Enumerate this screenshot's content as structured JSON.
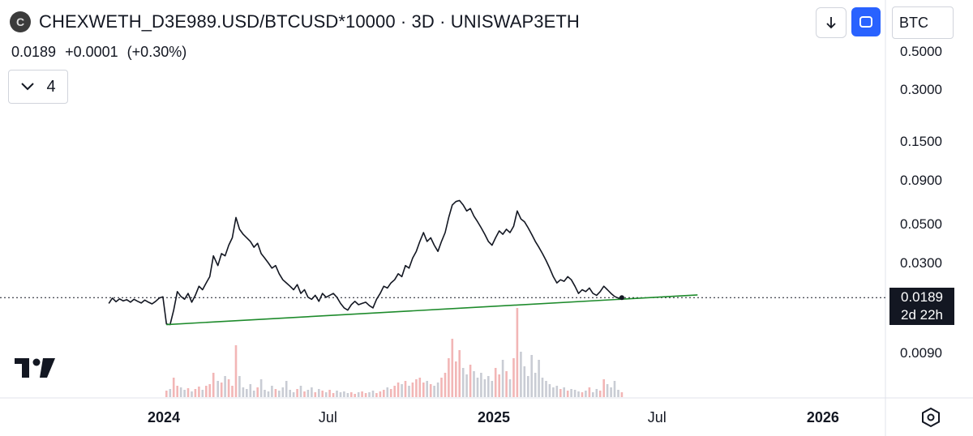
{
  "header": {
    "logo_letter": "C",
    "symbol_title": "CHEXWETH_D3E989.USD/BTCUSD*10000 · 3D · UNISWAP3ETH",
    "last_value": "0.0189",
    "change": "+0.0001",
    "change_pct": "(+0.30%)",
    "indicators_count": "4"
  },
  "toolbar": {
    "download_icon": "download-arrow-icon",
    "fullscreen_icon": "fullscreen-icon",
    "currency": "BTC"
  },
  "price_tag": {
    "value": "0.0189",
    "countdown": "2d 22h"
  },
  "colors": {
    "line": "#131722",
    "trendline": "#1e8b2c",
    "volume_up": "#f2b6b6",
    "volume_down": "#c9ccd4",
    "price_tag_bg": "#131722"
  },
  "chart_data": {
    "type": "line",
    "scale": "log",
    "y_ticks": [
      "0.5000",
      "0.3000",
      "0.1500",
      "0.0900",
      "0.0500",
      "0.0300",
      "0.0090"
    ],
    "y_tick_values": [
      0.5,
      0.3,
      0.15,
      0.09,
      0.05,
      0.03,
      0.009
    ],
    "x_ticks": [
      {
        "label": "2024",
        "date": "2024-01-01",
        "bold": true
      },
      {
        "label": "Jul",
        "date": "2024-07-01",
        "bold": false
      },
      {
        "label": "2025",
        "date": "2025-01-01",
        "bold": true
      },
      {
        "label": "Jul",
        "date": "2025-07-01",
        "bold": false
      },
      {
        "label": "2026",
        "date": "2026-01-01",
        "bold": true
      }
    ],
    "series": [
      {
        "points": [
          [
            "2023-11-01",
            0.0175
          ],
          [
            "2023-11-05",
            0.0188
          ],
          [
            "2023-11-09",
            0.0179
          ],
          [
            "2023-11-13",
            0.0186
          ],
          [
            "2023-11-17",
            0.0181
          ],
          [
            "2023-11-21",
            0.0184
          ],
          [
            "2023-11-25",
            0.0178
          ],
          [
            "2023-11-29",
            0.0185
          ],
          [
            "2023-12-03",
            0.018
          ],
          [
            "2023-12-07",
            0.0176
          ],
          [
            "2023-12-11",
            0.0183
          ],
          [
            "2023-12-15",
            0.0178
          ],
          [
            "2023-12-19",
            0.0174
          ],
          [
            "2023-12-23",
            0.018
          ],
          [
            "2023-12-27",
            0.0188
          ],
          [
            "2023-12-31",
            0.0191
          ],
          [
            "2024-01-04",
            0.0133
          ],
          [
            "2024-01-08",
            0.0132
          ],
          [
            "2024-01-12",
            0.016
          ],
          [
            "2024-01-16",
            0.0205
          ],
          [
            "2024-01-20",
            0.0192
          ],
          [
            "2024-01-24",
            0.0185
          ],
          [
            "2024-01-28",
            0.02
          ],
          [
            "2024-02-01",
            0.0178
          ],
          [
            "2024-02-05",
            0.0195
          ],
          [
            "2024-02-09",
            0.022
          ],
          [
            "2024-02-13",
            0.021
          ],
          [
            "2024-02-17",
            0.023
          ],
          [
            "2024-02-21",
            0.025
          ],
          [
            "2024-02-25",
            0.033
          ],
          [
            "2024-03-01",
            0.029
          ],
          [
            "2024-03-05",
            0.034
          ],
          [
            "2024-03-09",
            0.033
          ],
          [
            "2024-03-13",
            0.038
          ],
          [
            "2024-03-17",
            0.042
          ],
          [
            "2024-03-21",
            0.055
          ],
          [
            "2024-03-25",
            0.047
          ],
          [
            "2024-03-29",
            0.044
          ],
          [
            "2024-04-02",
            0.042
          ],
          [
            "2024-04-06",
            0.04
          ],
          [
            "2024-04-10",
            0.037
          ],
          [
            "2024-04-14",
            0.039
          ],
          [
            "2024-04-18",
            0.034
          ],
          [
            "2024-04-22",
            0.032
          ],
          [
            "2024-04-26",
            0.03
          ],
          [
            "2024-04-30",
            0.028
          ],
          [
            "2024-05-04",
            0.029
          ],
          [
            "2024-05-08",
            0.026
          ],
          [
            "2024-05-12",
            0.024
          ],
          [
            "2024-05-16",
            0.023
          ],
          [
            "2024-05-20",
            0.022
          ],
          [
            "2024-05-24",
            0.021
          ],
          [
            "2024-05-28",
            0.0225
          ],
          [
            "2024-06-01",
            0.02
          ],
          [
            "2024-06-05",
            0.021
          ],
          [
            "2024-06-09",
            0.019
          ],
          [
            "2024-06-13",
            0.0185
          ],
          [
            "2024-06-17",
            0.0195
          ],
          [
            "2024-06-21",
            0.018
          ],
          [
            "2024-06-25",
            0.02
          ],
          [
            "2024-06-29",
            0.019
          ],
          [
            "2024-07-03",
            0.0195
          ],
          [
            "2024-07-07",
            0.02
          ],
          [
            "2024-07-11",
            0.019
          ],
          [
            "2024-07-15",
            0.0175
          ],
          [
            "2024-07-19",
            0.0165
          ],
          [
            "2024-07-23",
            0.016
          ],
          [
            "2024-07-27",
            0.0172
          ],
          [
            "2024-07-31",
            0.018
          ],
          [
            "2024-08-04",
            0.0172
          ],
          [
            "2024-08-08",
            0.0175
          ],
          [
            "2024-08-12",
            0.0178
          ],
          [
            "2024-08-16",
            0.017
          ],
          [
            "2024-08-20",
            0.0165
          ],
          [
            "2024-08-24",
            0.0185
          ],
          [
            "2024-08-28",
            0.02
          ],
          [
            "2024-09-01",
            0.022
          ],
          [
            "2024-09-05",
            0.0215
          ],
          [
            "2024-09-09",
            0.023
          ],
          [
            "2024-09-13",
            0.024
          ],
          [
            "2024-09-17",
            0.026
          ],
          [
            "2024-09-21",
            0.025
          ],
          [
            "2024-09-25",
            0.029
          ],
          [
            "2024-09-29",
            0.028
          ],
          [
            "2024-10-03",
            0.032
          ],
          [
            "2024-10-07",
            0.035
          ],
          [
            "2024-10-11",
            0.04
          ],
          [
            "2024-10-15",
            0.045
          ],
          [
            "2024-10-19",
            0.04
          ],
          [
            "2024-10-23",
            0.042
          ],
          [
            "2024-10-27",
            0.038
          ],
          [
            "2024-10-31",
            0.035
          ],
          [
            "2024-11-04",
            0.04
          ],
          [
            "2024-11-08",
            0.045
          ],
          [
            "2024-11-12",
            0.055
          ],
          [
            "2024-11-16",
            0.065
          ],
          [
            "2024-11-20",
            0.068
          ],
          [
            "2024-11-24",
            0.069
          ],
          [
            "2024-11-28",
            0.065
          ],
          [
            "2024-12-02",
            0.06
          ],
          [
            "2024-12-06",
            0.062
          ],
          [
            "2024-12-10",
            0.056
          ],
          [
            "2024-12-14",
            0.052
          ],
          [
            "2024-12-18",
            0.048
          ],
          [
            "2024-12-22",
            0.044
          ],
          [
            "2024-12-26",
            0.04
          ],
          [
            "2024-12-30",
            0.038
          ],
          [
            "2025-01-03",
            0.042
          ],
          [
            "2025-01-07",
            0.046
          ],
          [
            "2025-01-11",
            0.044
          ],
          [
            "2025-01-15",
            0.047
          ],
          [
            "2025-01-19",
            0.045
          ],
          [
            "2025-01-23",
            0.049
          ],
          [
            "2025-01-27",
            0.06
          ],
          [
            "2025-01-31",
            0.054
          ],
          [
            "2025-02-04",
            0.052
          ],
          [
            "2025-02-08",
            0.048
          ],
          [
            "2025-02-12",
            0.044
          ],
          [
            "2025-02-16",
            0.04
          ],
          [
            "2025-02-20",
            0.037
          ],
          [
            "2025-02-24",
            0.034
          ],
          [
            "2025-02-28",
            0.031
          ],
          [
            "2025-03-04",
            0.028
          ],
          [
            "2025-03-08",
            0.025
          ],
          [
            "2025-03-12",
            0.023
          ],
          [
            "2025-03-16",
            0.024
          ],
          [
            "2025-03-20",
            0.0235
          ],
          [
            "2025-03-24",
            0.025
          ],
          [
            "2025-03-28",
            0.024
          ],
          [
            "2025-04-01",
            0.022
          ],
          [
            "2025-04-05",
            0.02
          ],
          [
            "2025-04-09",
            0.021
          ],
          [
            "2025-04-13",
            0.0205
          ],
          [
            "2025-04-17",
            0.0215
          ],
          [
            "2025-04-21",
            0.02
          ],
          [
            "2025-04-25",
            0.0195
          ],
          [
            "2025-04-29",
            0.0205
          ],
          [
            "2025-05-03",
            0.022
          ],
          [
            "2025-05-07",
            0.021
          ],
          [
            "2025-05-11",
            0.02
          ],
          [
            "2025-05-15",
            0.0192
          ],
          [
            "2025-05-19",
            0.0188
          ],
          [
            "2025-05-23",
            0.0189
          ]
        ]
      }
    ],
    "trendline": {
      "start": [
        "2024-01-04",
        0.0132
      ],
      "end": [
        "2025-08-15",
        0.0196
      ]
    },
    "last_price_line": 0.0189,
    "volume": [
      [
        "2024-01-04",
        8
      ],
      [
        "2024-01-08",
        10
      ],
      [
        "2024-01-12",
        24
      ],
      [
        "2024-01-16",
        14
      ],
      [
        "2024-01-20",
        12
      ],
      [
        "2024-01-24",
        9
      ],
      [
        "2024-01-28",
        11
      ],
      [
        "2024-02-01",
        7
      ],
      [
        "2024-02-05",
        10
      ],
      [
        "2024-02-09",
        13
      ],
      [
        "2024-02-13",
        9
      ],
      [
        "2024-02-17",
        14
      ],
      [
        "2024-02-21",
        16
      ],
      [
        "2024-02-25",
        30
      ],
      [
        "2024-03-01",
        20
      ],
      [
        "2024-03-05",
        18
      ],
      [
        "2024-03-09",
        26
      ],
      [
        "2024-03-13",
        22
      ],
      [
        "2024-03-17",
        14
      ],
      [
        "2024-03-21",
        64
      ],
      [
        "2024-03-25",
        26
      ],
      [
        "2024-03-29",
        12
      ],
      [
        "2024-04-02",
        10
      ],
      [
        "2024-04-06",
        16
      ],
      [
        "2024-04-10",
        8
      ],
      [
        "2024-04-14",
        12
      ],
      [
        "2024-04-18",
        22
      ],
      [
        "2024-04-22",
        9
      ],
      [
        "2024-04-26",
        7
      ],
      [
        "2024-04-30",
        14
      ],
      [
        "2024-05-04",
        10
      ],
      [
        "2024-05-08",
        8
      ],
      [
        "2024-05-12",
        12
      ],
      [
        "2024-05-16",
        20
      ],
      [
        "2024-05-20",
        9
      ],
      [
        "2024-05-24",
        6
      ],
      [
        "2024-05-28",
        10
      ],
      [
        "2024-06-01",
        14
      ],
      [
        "2024-06-05",
        7
      ],
      [
        "2024-06-09",
        9
      ],
      [
        "2024-06-13",
        12
      ],
      [
        "2024-06-17",
        6
      ],
      [
        "2024-06-21",
        10
      ],
      [
        "2024-06-25",
        8
      ],
      [
        "2024-06-29",
        6
      ],
      [
        "2024-07-03",
        9
      ],
      [
        "2024-07-07",
        5
      ],
      [
        "2024-07-11",
        8
      ],
      [
        "2024-07-15",
        6
      ],
      [
        "2024-07-19",
        7
      ],
      [
        "2024-07-23",
        5
      ],
      [
        "2024-07-27",
        6
      ],
      [
        "2024-07-31",
        4
      ],
      [
        "2024-08-04",
        6
      ],
      [
        "2024-08-08",
        7
      ],
      [
        "2024-08-12",
        5
      ],
      [
        "2024-08-16",
        6
      ],
      [
        "2024-08-20",
        8
      ],
      [
        "2024-08-24",
        5
      ],
      [
        "2024-08-28",
        7
      ],
      [
        "2024-09-01",
        9
      ],
      [
        "2024-09-05",
        12
      ],
      [
        "2024-09-09",
        10
      ],
      [
        "2024-09-13",
        14
      ],
      [
        "2024-09-17",
        18
      ],
      [
        "2024-09-21",
        16
      ],
      [
        "2024-09-25",
        20
      ],
      [
        "2024-09-29",
        14
      ],
      [
        "2024-10-03",
        18
      ],
      [
        "2024-10-07",
        22
      ],
      [
        "2024-10-11",
        24
      ],
      [
        "2024-10-15",
        18
      ],
      [
        "2024-10-19",
        20
      ],
      [
        "2024-10-23",
        16
      ],
      [
        "2024-10-27",
        14
      ],
      [
        "2024-10-31",
        18
      ],
      [
        "2024-11-04",
        24
      ],
      [
        "2024-11-08",
        30
      ],
      [
        "2024-11-12",
        48
      ],
      [
        "2024-11-16",
        72
      ],
      [
        "2024-11-20",
        44
      ],
      [
        "2024-11-24",
        58
      ],
      [
        "2024-11-28",
        36
      ],
      [
        "2024-12-02",
        28
      ],
      [
        "2024-12-06",
        40
      ],
      [
        "2024-12-10",
        32
      ],
      [
        "2024-12-14",
        24
      ],
      [
        "2024-12-18",
        30
      ],
      [
        "2024-12-22",
        22
      ],
      [
        "2024-12-26",
        26
      ],
      [
        "2024-12-30",
        20
      ],
      [
        "2025-01-03",
        36
      ],
      [
        "2025-01-07",
        28
      ],
      [
        "2025-01-11",
        46
      ],
      [
        "2025-01-15",
        32
      ],
      [
        "2025-01-19",
        22
      ],
      [
        "2025-01-23",
        48
      ],
      [
        "2025-01-27",
        110
      ],
      [
        "2025-01-31",
        56
      ],
      [
        "2025-02-04",
        38
      ],
      [
        "2025-02-08",
        26
      ],
      [
        "2025-02-12",
        52
      ],
      [
        "2025-02-16",
        30
      ],
      [
        "2025-02-20",
        46
      ],
      [
        "2025-02-24",
        24
      ],
      [
        "2025-02-28",
        20
      ],
      [
        "2025-03-04",
        16
      ],
      [
        "2025-03-08",
        12
      ],
      [
        "2025-03-12",
        14
      ],
      [
        "2025-03-16",
        10
      ],
      [
        "2025-03-20",
        12
      ],
      [
        "2025-03-24",
        8
      ],
      [
        "2025-03-28",
        10
      ],
      [
        "2025-04-01",
        9
      ],
      [
        "2025-04-05",
        7
      ],
      [
        "2025-04-09",
        6
      ],
      [
        "2025-04-13",
        8
      ],
      [
        "2025-04-17",
        12
      ],
      [
        "2025-04-21",
        6
      ],
      [
        "2025-04-25",
        10
      ],
      [
        "2025-04-29",
        8
      ],
      [
        "2025-05-03",
        22
      ],
      [
        "2025-05-07",
        16
      ],
      [
        "2025-05-11",
        12
      ],
      [
        "2025-05-15",
        20
      ],
      [
        "2025-05-19",
        9
      ],
      [
        "2025-05-23",
        6
      ]
    ]
  }
}
